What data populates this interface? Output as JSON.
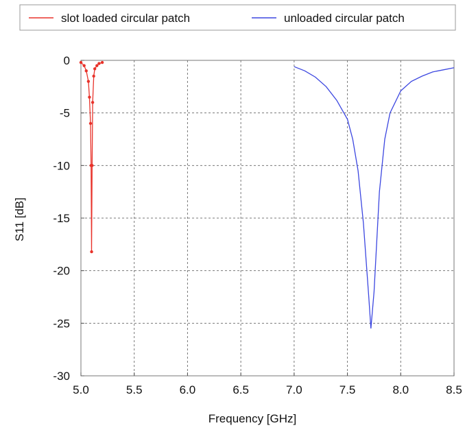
{
  "chart_data": {
    "type": "line",
    "xlabel": "Frequency [GHz]",
    "ylabel": "S11 [dB]",
    "xlim": [
      5.0,
      8.5
    ],
    "ylim": [
      -30,
      0
    ],
    "xticks": [
      "5.0",
      "5.5",
      "6.0",
      "6.5",
      "7.0",
      "7.5",
      "8.0",
      "8.5"
    ],
    "yticks": [
      "0",
      "-5",
      "-10",
      "-15",
      "-20",
      "-25",
      "-30"
    ],
    "grid": true,
    "legend_position": "top",
    "series": [
      {
        "name": "slot loaded circular patch",
        "color": "#e8322a",
        "x": [
          5.0,
          5.03,
          5.05,
          5.07,
          5.08,
          5.09,
          5.095,
          5.1,
          5.105,
          5.11,
          5.12,
          5.13,
          5.15,
          5.17,
          5.2
        ],
        "y": [
          -0.2,
          -0.5,
          -1.0,
          -2.0,
          -3.5,
          -6.0,
          -10.0,
          -18.2,
          -10.0,
          -4.0,
          -1.5,
          -0.8,
          -0.5,
          -0.3,
          -0.2
        ],
        "markers": true
      },
      {
        "name": "unloaded circular patch",
        "color": "#3b46e0",
        "x": [
          7.0,
          7.1,
          7.2,
          7.3,
          7.4,
          7.5,
          7.55,
          7.6,
          7.65,
          7.7,
          7.72,
          7.75,
          7.8,
          7.85,
          7.9,
          8.0,
          8.1,
          8.2,
          8.3,
          8.4,
          8.5
        ],
        "y": [
          -0.6,
          -1.0,
          -1.6,
          -2.5,
          -3.8,
          -5.6,
          -7.5,
          -10.5,
          -15.5,
          -22.5,
          -25.5,
          -22.0,
          -12.5,
          -7.5,
          -5.0,
          -2.9,
          -2.0,
          -1.5,
          -1.1,
          -0.9,
          -0.7
        ]
      }
    ]
  }
}
